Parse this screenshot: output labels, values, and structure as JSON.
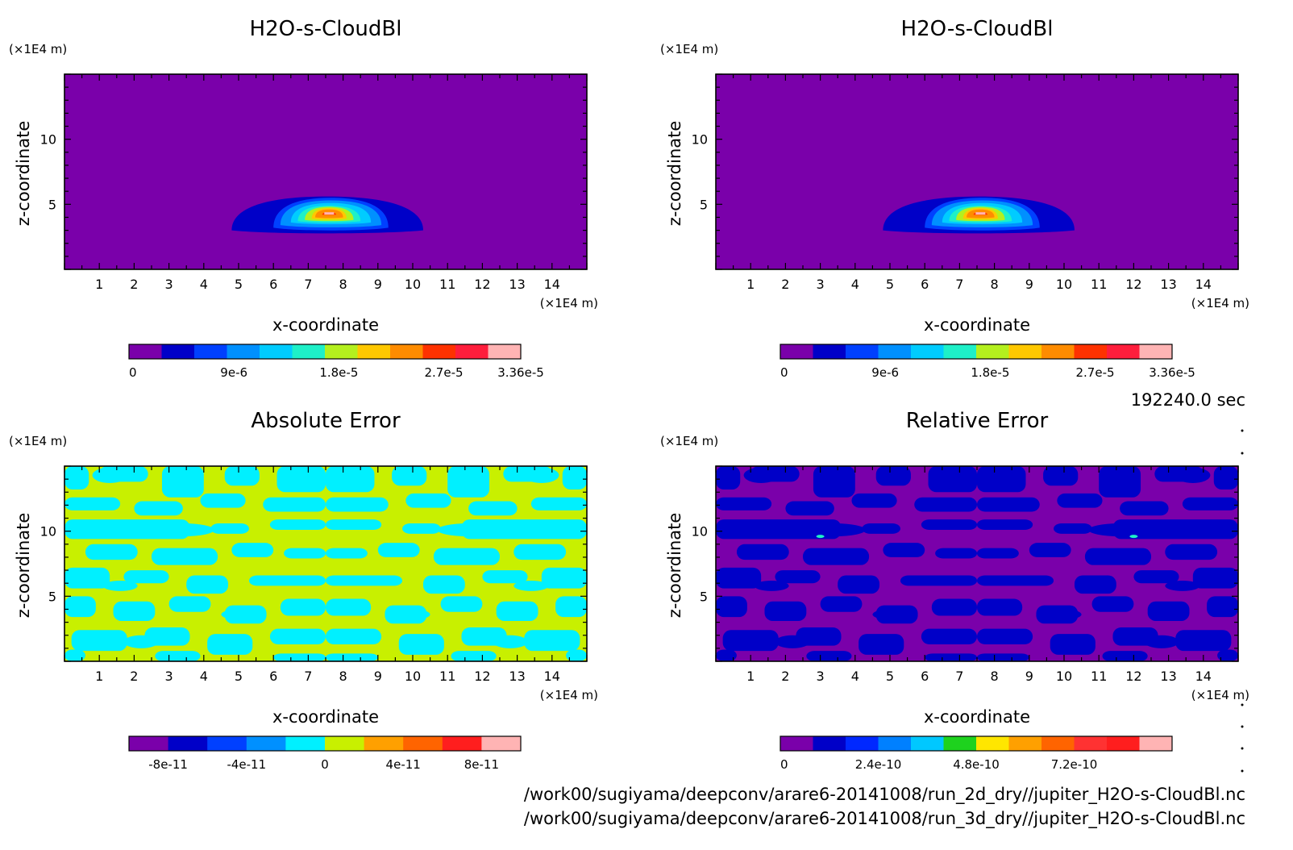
{
  "panels": [
    {
      "id": "p1",
      "title": "H2O-s-CloudBl",
      "y_unit": "(×1E4 m)",
      "x_unit": "(×1E4 m)",
      "xlabel": "x-coordinate",
      "ylabel": "z-coordinate",
      "colorbar": {
        "colors": [
          "#7a00aa",
          "#0000c8",
          "#0040ff",
          "#0090ff",
          "#00ccff",
          "#1ef0c8",
          "#b4f01e",
          "#ffc800",
          "#ff8c00",
          "#ff3200",
          "#ff1e3c",
          "#ffb4b4"
        ],
        "tick_labels": [
          "0",
          "9e-6",
          "1.8e-5",
          "2.7e-5",
          "3.36e-5"
        ],
        "tick_positions_data": [
          0,
          9e-06,
          1.8e-05,
          2.7e-05,
          3.36e-05
        ],
        "range": [
          0,
          3.36e-05
        ]
      }
    },
    {
      "id": "p2",
      "title": "H2O-s-CloudBl",
      "y_unit": "(×1E4 m)",
      "x_unit": "(×1E4 m)",
      "xlabel": "x-coordinate",
      "ylabel": "z-coordinate",
      "colorbar": {
        "colors": [
          "#7a00aa",
          "#0000c8",
          "#0040ff",
          "#0090ff",
          "#00ccff",
          "#1ef0c8",
          "#b4f01e",
          "#ffc800",
          "#ff8c00",
          "#ff3200",
          "#ff1e3c",
          "#ffb4b4"
        ],
        "tick_labels": [
          "0",
          "9e-6",
          "1.8e-5",
          "2.7e-5",
          "3.36e-5"
        ],
        "tick_positions_data": [
          0,
          9e-06,
          1.8e-05,
          2.7e-05,
          3.36e-05
        ],
        "range": [
          0,
          3.36e-05
        ]
      }
    },
    {
      "id": "p3",
      "title": "Absolute Error",
      "y_unit": "(×1E4 m)",
      "x_unit": "(×1E4 m)",
      "xlabel": "x-coordinate",
      "ylabel": "z-coordinate",
      "colorbar": {
        "colors": [
          "#7a00aa",
          "#0000c8",
          "#0040ff",
          "#0090ff",
          "#00f0ff",
          "#c8f000",
          "#ffa000",
          "#ff6400",
          "#ff1e1e",
          "#ffb4b4"
        ],
        "tick_labels": [
          "-8e-11",
          "-4e-11",
          "0",
          "4e-11",
          "8e-11"
        ],
        "tick_positions_data": [
          -8e-11,
          -4e-11,
          0,
          4e-11,
          8e-11
        ],
        "range": [
          -1e-10,
          1e-10
        ]
      }
    },
    {
      "id": "p4",
      "title": "Relative Error",
      "y_unit": "(×1E4 m)",
      "x_unit": "(×1E4 m)",
      "xlabel": "x-coordinate",
      "ylabel": "z-coordinate",
      "colorbar": {
        "colors": [
          "#7a00aa",
          "#0000c8",
          "#0028ff",
          "#0080ff",
          "#00c8ff",
          "#1ed21e",
          "#ffe600",
          "#ffa000",
          "#ff6400",
          "#ff3232",
          "#ff1e1e",
          "#ffb4b4"
        ],
        "tick_labels": [
          "0",
          "2.4e-10",
          "4.8e-10",
          "7.2e-10"
        ],
        "tick_positions_data": [
          0,
          2.4e-10,
          4.8e-10,
          7.2e-10
        ],
        "range": [
          0,
          9.6e-10
        ]
      }
    }
  ],
  "time_label": "192240.0 sec",
  "footer": {
    "line1": "/work00/sugiyama/deepconv/arare6-20141008/run_2d_dry//jupiter_H2O-s-CloudBl.nc",
    "line2": "/work00/sugiyama/deepconv/arare6-20141008/run_3d_dry//jupiter_H2O-s-CloudBl.nc"
  },
  "chart_data": [
    {
      "type": "heatmap",
      "title": "H2O-s-CloudBl",
      "xlabel": "x-coordinate",
      "ylabel": "z-coordinate",
      "x_unit": "(×1E4 m)",
      "y_unit": "(×1E4 m)",
      "xlim": [
        0,
        15
      ],
      "ylim": [
        0,
        15
      ],
      "x_ticks": [
        1,
        2,
        3,
        4,
        5,
        6,
        7,
        8,
        9,
        10,
        11,
        12,
        13,
        14
      ],
      "y_ticks": [
        5,
        10
      ],
      "background_level": 0,
      "cloud": {
        "center_x": 7.6,
        "center_z": 4.3,
        "levels": [
          {
            "value": 3e-06,
            "x_range": [
              4.8,
              10.3
            ],
            "z_range": [
              3.0,
              5.6
            ]
          },
          {
            "value": 6e-06,
            "x_range": [
              6.0,
              9.3
            ],
            "z_range": [
              3.2,
              5.5
            ]
          },
          {
            "value": 1e-05,
            "x_range": [
              6.2,
              9.1
            ],
            "z_range": [
              3.4,
              5.3
            ]
          },
          {
            "value": 1.4e-05,
            "x_range": [
              6.5,
              8.8
            ],
            "z_range": [
              3.6,
              5.1
            ]
          },
          {
            "value": 1.8e-05,
            "x_range": [
              6.7,
              8.5
            ],
            "z_range": [
              3.7,
              4.9
            ]
          },
          {
            "value": 2.2e-05,
            "x_range": [
              6.9,
              8.3
            ],
            "z_range": [
              3.8,
              4.8
            ]
          },
          {
            "value": 2.5e-05,
            "x_range": [
              7.1,
              8.1
            ],
            "z_range": [
              3.9,
              4.7
            ]
          },
          {
            "value": 2.9e-05,
            "x_range": [
              7.2,
              8.0
            ],
            "z_range": [
              4.0,
              4.6
            ]
          },
          {
            "value": 3.2e-05,
            "x_range": [
              7.4,
              7.8
            ],
            "z_range": [
              4.2,
              4.4
            ]
          }
        ]
      },
      "colorbar_range": [
        0,
        3.36e-05
      ]
    },
    {
      "type": "heatmap",
      "title": "H2O-s-CloudBl",
      "xlabel": "x-coordinate",
      "ylabel": "z-coordinate",
      "x_unit": "(×1E4 m)",
      "y_unit": "(×1E4 m)",
      "xlim": [
        0,
        15
      ],
      "ylim": [
        0,
        15
      ],
      "x_ticks": [
        1,
        2,
        3,
        4,
        5,
        6,
        7,
        8,
        9,
        10,
        11,
        12,
        13,
        14
      ],
      "y_ticks": [
        5,
        10
      ],
      "background_level": 0,
      "cloud": {
        "center_x": 7.6,
        "center_z": 4.3,
        "levels": [
          {
            "value": 3e-06,
            "x_range": [
              4.8,
              10.3
            ],
            "z_range": [
              3.0,
              5.6
            ]
          },
          {
            "value": 6e-06,
            "x_range": [
              6.0,
              9.3
            ],
            "z_range": [
              3.2,
              5.5
            ]
          },
          {
            "value": 1e-05,
            "x_range": [
              6.2,
              9.1
            ],
            "z_range": [
              3.4,
              5.3
            ]
          },
          {
            "value": 1.4e-05,
            "x_range": [
              6.5,
              8.8
            ],
            "z_range": [
              3.6,
              5.1
            ]
          },
          {
            "value": 1.8e-05,
            "x_range": [
              6.7,
              8.5
            ],
            "z_range": [
              3.7,
              4.9
            ]
          },
          {
            "value": 2.2e-05,
            "x_range": [
              6.9,
              8.3
            ],
            "z_range": [
              3.8,
              4.8
            ]
          },
          {
            "value": 2.5e-05,
            "x_range": [
              7.1,
              8.1
            ],
            "z_range": [
              3.9,
              4.7
            ]
          },
          {
            "value": 2.9e-05,
            "x_range": [
              7.2,
              8.0
            ],
            "z_range": [
              4.0,
              4.6
            ]
          },
          {
            "value": 3.2e-05,
            "x_range": [
              7.4,
              7.8
            ],
            "z_range": [
              4.2,
              4.4
            ]
          }
        ]
      },
      "colorbar_range": [
        0,
        3.36e-05
      ]
    },
    {
      "type": "heatmap",
      "title": "Absolute Error",
      "xlabel": "x-coordinate",
      "ylabel": "z-coordinate",
      "x_unit": "(×1E4 m)",
      "y_unit": "(×1E4 m)",
      "xlim": [
        0,
        15
      ],
      "ylim": [
        0,
        15
      ],
      "x_ticks": [
        1,
        2,
        3,
        4,
        5,
        6,
        7,
        8,
        9,
        10,
        11,
        12,
        13,
        14
      ],
      "y_ticks": [
        5,
        10
      ],
      "pattern": "mirror-symmetric patches about x=7.5 alternating between two levels",
      "levels_present": [
        -1e-11,
        1e-11
      ],
      "colorbar_range": [
        -1e-10,
        1e-10
      ]
    },
    {
      "type": "heatmap",
      "title": "Relative Error",
      "xlabel": "x-coordinate",
      "ylabel": "z-coordinate",
      "x_unit": "(×1E4 m)",
      "y_unit": "(×1E4 m)",
      "xlim": [
        0,
        15
      ],
      "ylim": [
        0,
        15
      ],
      "x_ticks": [
        1,
        2,
        3,
        4,
        5,
        6,
        7,
        8,
        9,
        10,
        11,
        12,
        13,
        14
      ],
      "y_ticks": [
        5,
        10
      ],
      "pattern": "mirror-symmetric patches about x=7.5 alternating between two levels",
      "levels_present": [
        0,
        8e-11
      ],
      "colorbar_range": [
        0,
        9.6e-10
      ]
    }
  ]
}
